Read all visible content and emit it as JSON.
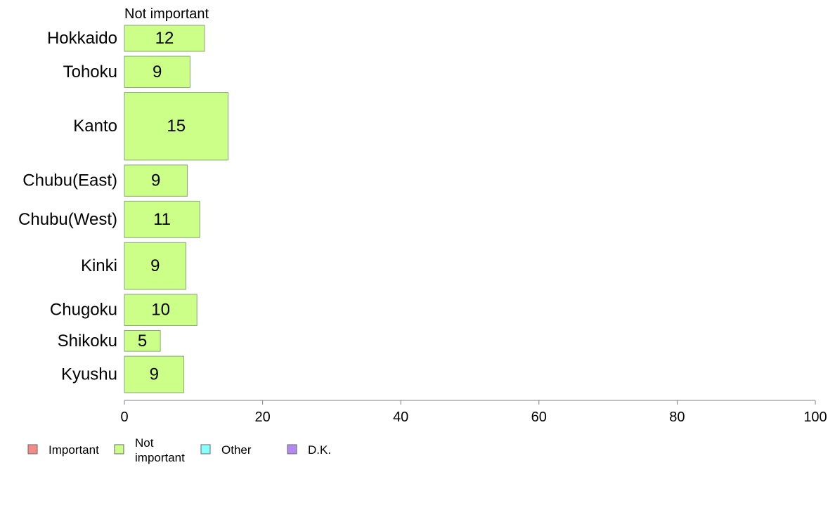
{
  "chart_data": {
    "type": "bar",
    "orientation": "horizontal",
    "title": "",
    "series_title": "Not important",
    "categories": [
      "Hokkaido",
      "Tohoku",
      "Kanto",
      "Chubu(East)",
      "Chubu(West)",
      "Kinki",
      "Chugoku",
      "Shikoku",
      "Kyushu"
    ],
    "series": [
      {
        "name": "Not important",
        "values": [
          12,
          9,
          15,
          9,
          11,
          9,
          10,
          5,
          9
        ],
        "bar_values": [
          11.6,
          9.5,
          15,
          9.1,
          10.9,
          8.9,
          10.5,
          5.2,
          8.6
        ]
      }
    ],
    "category_weights": [
      5,
      6,
      13,
      6,
      7,
      9,
      6,
      4,
      7
    ],
    "xlim": [
      0,
      100
    ],
    "xticks": [
      0,
      20,
      40,
      60,
      80,
      100
    ],
    "grid": false,
    "legend": {
      "placement": "bottom-left",
      "items": [
        {
          "label": "Important",
          "color": "#f58a8a"
        },
        {
          "label": "Not\nimportant",
          "color": "#ccff88"
        },
        {
          "label": "Other",
          "color": "#88ffff"
        },
        {
          "label": "D.K.",
          "color": "#b388f2"
        }
      ]
    },
    "colors": {
      "bar_fill": "#ccff88",
      "bar_stroke": "#8aa878",
      "axis": "#808080"
    }
  }
}
